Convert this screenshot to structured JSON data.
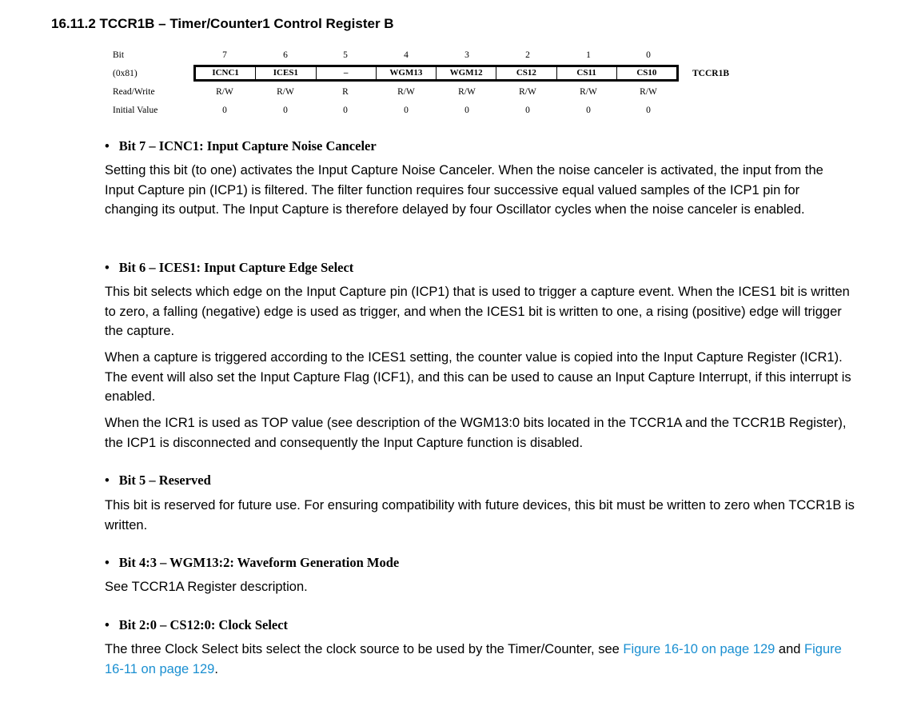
{
  "heading": "16.11.2 TCCR1B – Timer/Counter1 Control Register B",
  "register": {
    "row_labels": {
      "bit": "Bit",
      "address": "(0x81)",
      "rw": "Read/Write",
      "initial": "Initial Value"
    },
    "bits": [
      "7",
      "6",
      "5",
      "4",
      "3",
      "2",
      "1",
      "0"
    ],
    "names": [
      "ICNC1",
      "ICES1",
      "–",
      "WGM13",
      "WGM12",
      "CS12",
      "CS11",
      "CS10"
    ],
    "rw": [
      "R/W",
      "R/W",
      "R",
      "R/W",
      "R/W",
      "R/W",
      "R/W",
      "R/W"
    ],
    "initial": [
      "0",
      "0",
      "0",
      "0",
      "0",
      "0",
      "0",
      "0"
    ],
    "name": "TCCR1B"
  },
  "sections": {
    "bit7": {
      "title": "Bit 7 – ICNC1: Input Capture Noise Canceler",
      "p1": "Setting this bit (to one) activates the Input Capture Noise Canceler. When the noise canceler is activated, the input from the Input Capture pin (ICP1) is filtered. The filter function requires four successive equal valued samples of the ICP1 pin for changing its output. The Input Capture is therefore delayed by four Oscillator cycles when the noise canceler is enabled."
    },
    "bit6": {
      "title": "Bit 6 – ICES1: Input Capture Edge Select",
      "p1": "This bit selects which edge on the Input Capture pin (ICP1) that is used to trigger a capture event. When the ICES1 bit is written to zero, a falling (negative) edge is used as trigger, and when the ICES1 bit is written to one, a rising (positive) edge will trigger the capture.",
      "p2": "When a capture is triggered according to the ICES1 setting, the counter value is copied into the Input Capture Register (ICR1). The event will also set the Input Capture Flag (ICF1), and this can be used to cause an Input Capture Interrupt, if this interrupt is enabled.",
      "p3": "When the ICR1 is used as TOP value (see description of the WGM13:0 bits located in the TCCR1A and the TCCR1B Register), the ICP1 is disconnected and consequently the Input Capture function is disabled."
    },
    "bit5": {
      "title": "Bit 5 – Reserved",
      "p1": "This bit is reserved for future use. For ensuring compatibility with future devices, this bit must be written to zero when TCCR1B is written."
    },
    "bit43": {
      "title": "Bit 4:3 – WGM13:2: Waveform Generation Mode",
      "p1": "See TCCR1A Register description."
    },
    "bit20": {
      "title": "Bit 2:0 – CS12:0: Clock Select",
      "p1_prefix": "The three Clock Select bits select the clock source to be used by the Timer/Counter, see ",
      "link1": "Figure 16-10 on page 129",
      "mid": " and ",
      "link2": "Figure 16-11 on page 129",
      "suffix": "."
    }
  }
}
